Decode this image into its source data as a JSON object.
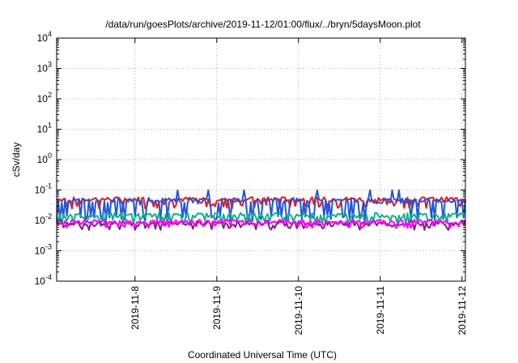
{
  "chart_data": {
    "type": "line",
    "title": "/data/run/goesPlots/archive/2019-11-12/01:00/flux/../bryn/5daysMoon.plot",
    "xlabel": "Coordinated Universal Time (UTC)",
    "ylabel": "cSv/day",
    "yscale": "log",
    "ylim": [
      0.0001,
      10000
    ],
    "xlim": [
      "2019-11-07 01:00",
      "2019-11-12 01:00"
    ],
    "grid": true,
    "y_ticks": [
      {
        "value": 0.0001,
        "base": "10",
        "exp": "-4"
      },
      {
        "value": 0.001,
        "base": "10",
        "exp": "-3"
      },
      {
        "value": 0.01,
        "base": "10",
        "exp": "-2"
      },
      {
        "value": 0.1,
        "base": "10",
        "exp": "-1"
      },
      {
        "value": 1,
        "base": "10",
        "exp": "0"
      },
      {
        "value": 10,
        "base": "10",
        "exp": "1"
      },
      {
        "value": 100,
        "base": "10",
        "exp": "2"
      },
      {
        "value": 1000,
        "base": "10",
        "exp": "3"
      },
      {
        "value": 10000,
        "base": "10",
        "exp": "4"
      }
    ],
    "x_ticks": [
      {
        "label": "2019-11-8",
        "date": "2019-11-08 00:00"
      },
      {
        "label": "2019-11-9",
        "date": "2019-11-09 00:00"
      },
      {
        "label": "2019-11-10",
        "date": "2019-11-10 00:00"
      },
      {
        "label": "2019-11-11",
        "date": "2019-11-11 00:00"
      },
      {
        "label": "2019-11-12",
        "date": "2019-11-12 00:00"
      }
    ],
    "series": [
      {
        "color": "#e41a1c",
        "baseline": 0.05,
        "dip": 0.03
      },
      {
        "color": "#2255dd",
        "baseline": 0.045,
        "dip": 0.012
      },
      {
        "color": "#10b090",
        "baseline": 0.015,
        "dip": 0.009
      },
      {
        "color": "#8a1a8a",
        "baseline": 0.008,
        "dip": 0.006
      },
      {
        "color": "#ff00ff",
        "baseline": 0.009,
        "dip": 0.007
      }
    ]
  }
}
